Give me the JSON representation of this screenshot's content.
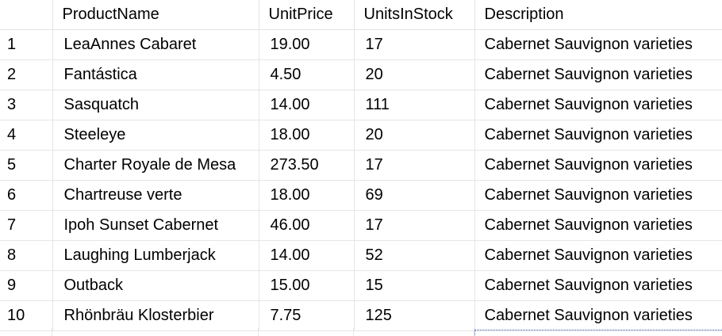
{
  "grid": {
    "columns": [
      "",
      "ProductName",
      "UnitPrice",
      "UnitsInStock",
      "Description"
    ],
    "rows": [
      {
        "num": "1",
        "product_name": "LeaAnnes Cabaret",
        "unit_price": "19.00",
        "units_in_stock": "17",
        "description": "Cabernet Sauvignon varieties"
      },
      {
        "num": "2",
        "product_name": "Fantástica",
        "unit_price": "4.50",
        "units_in_stock": "20",
        "description": "Cabernet Sauvignon varieties"
      },
      {
        "num": "3",
        "product_name": "Sasquatch",
        "unit_price": "14.00",
        "units_in_stock": "111",
        "description": "Cabernet Sauvignon varieties"
      },
      {
        "num": "4",
        "product_name": "Steeleye",
        "unit_price": "18.00",
        "units_in_stock": "20",
        "description": "Cabernet Sauvignon varieties"
      },
      {
        "num": "5",
        "product_name": "Charter Royale de Mesa",
        "unit_price": "273.50",
        "units_in_stock": "17",
        "description": "Cabernet Sauvignon varieties"
      },
      {
        "num": "6",
        "product_name": "Chartreuse verte",
        "unit_price": "18.00",
        "units_in_stock": "69",
        "description": "Cabernet Sauvignon varieties"
      },
      {
        "num": "7",
        "product_name": "Ipoh Sunset Cabernet",
        "unit_price": "46.00",
        "units_in_stock": "17",
        "description": "Cabernet Sauvignon varieties"
      },
      {
        "num": "8",
        "product_name": "Laughing Lumberjack",
        "unit_price": "14.00",
        "units_in_stock": "52",
        "description": "Cabernet Sauvignon varieties"
      },
      {
        "num": "9",
        "product_name": "Outback",
        "unit_price": "15.00",
        "units_in_stock": "15",
        "description": "Cabernet Sauvignon varieties"
      },
      {
        "num": "10",
        "product_name": "Rhönbräu Klosterbier",
        "unit_price": "7.75",
        "units_in_stock": "125",
        "description": "Cabernet Sauvignon varieties"
      }
    ]
  },
  "colors": {
    "background": "#ffffff",
    "gridline": "#e6e6e6",
    "text": "#000000",
    "focus_outline": "#3a5ea8"
  }
}
